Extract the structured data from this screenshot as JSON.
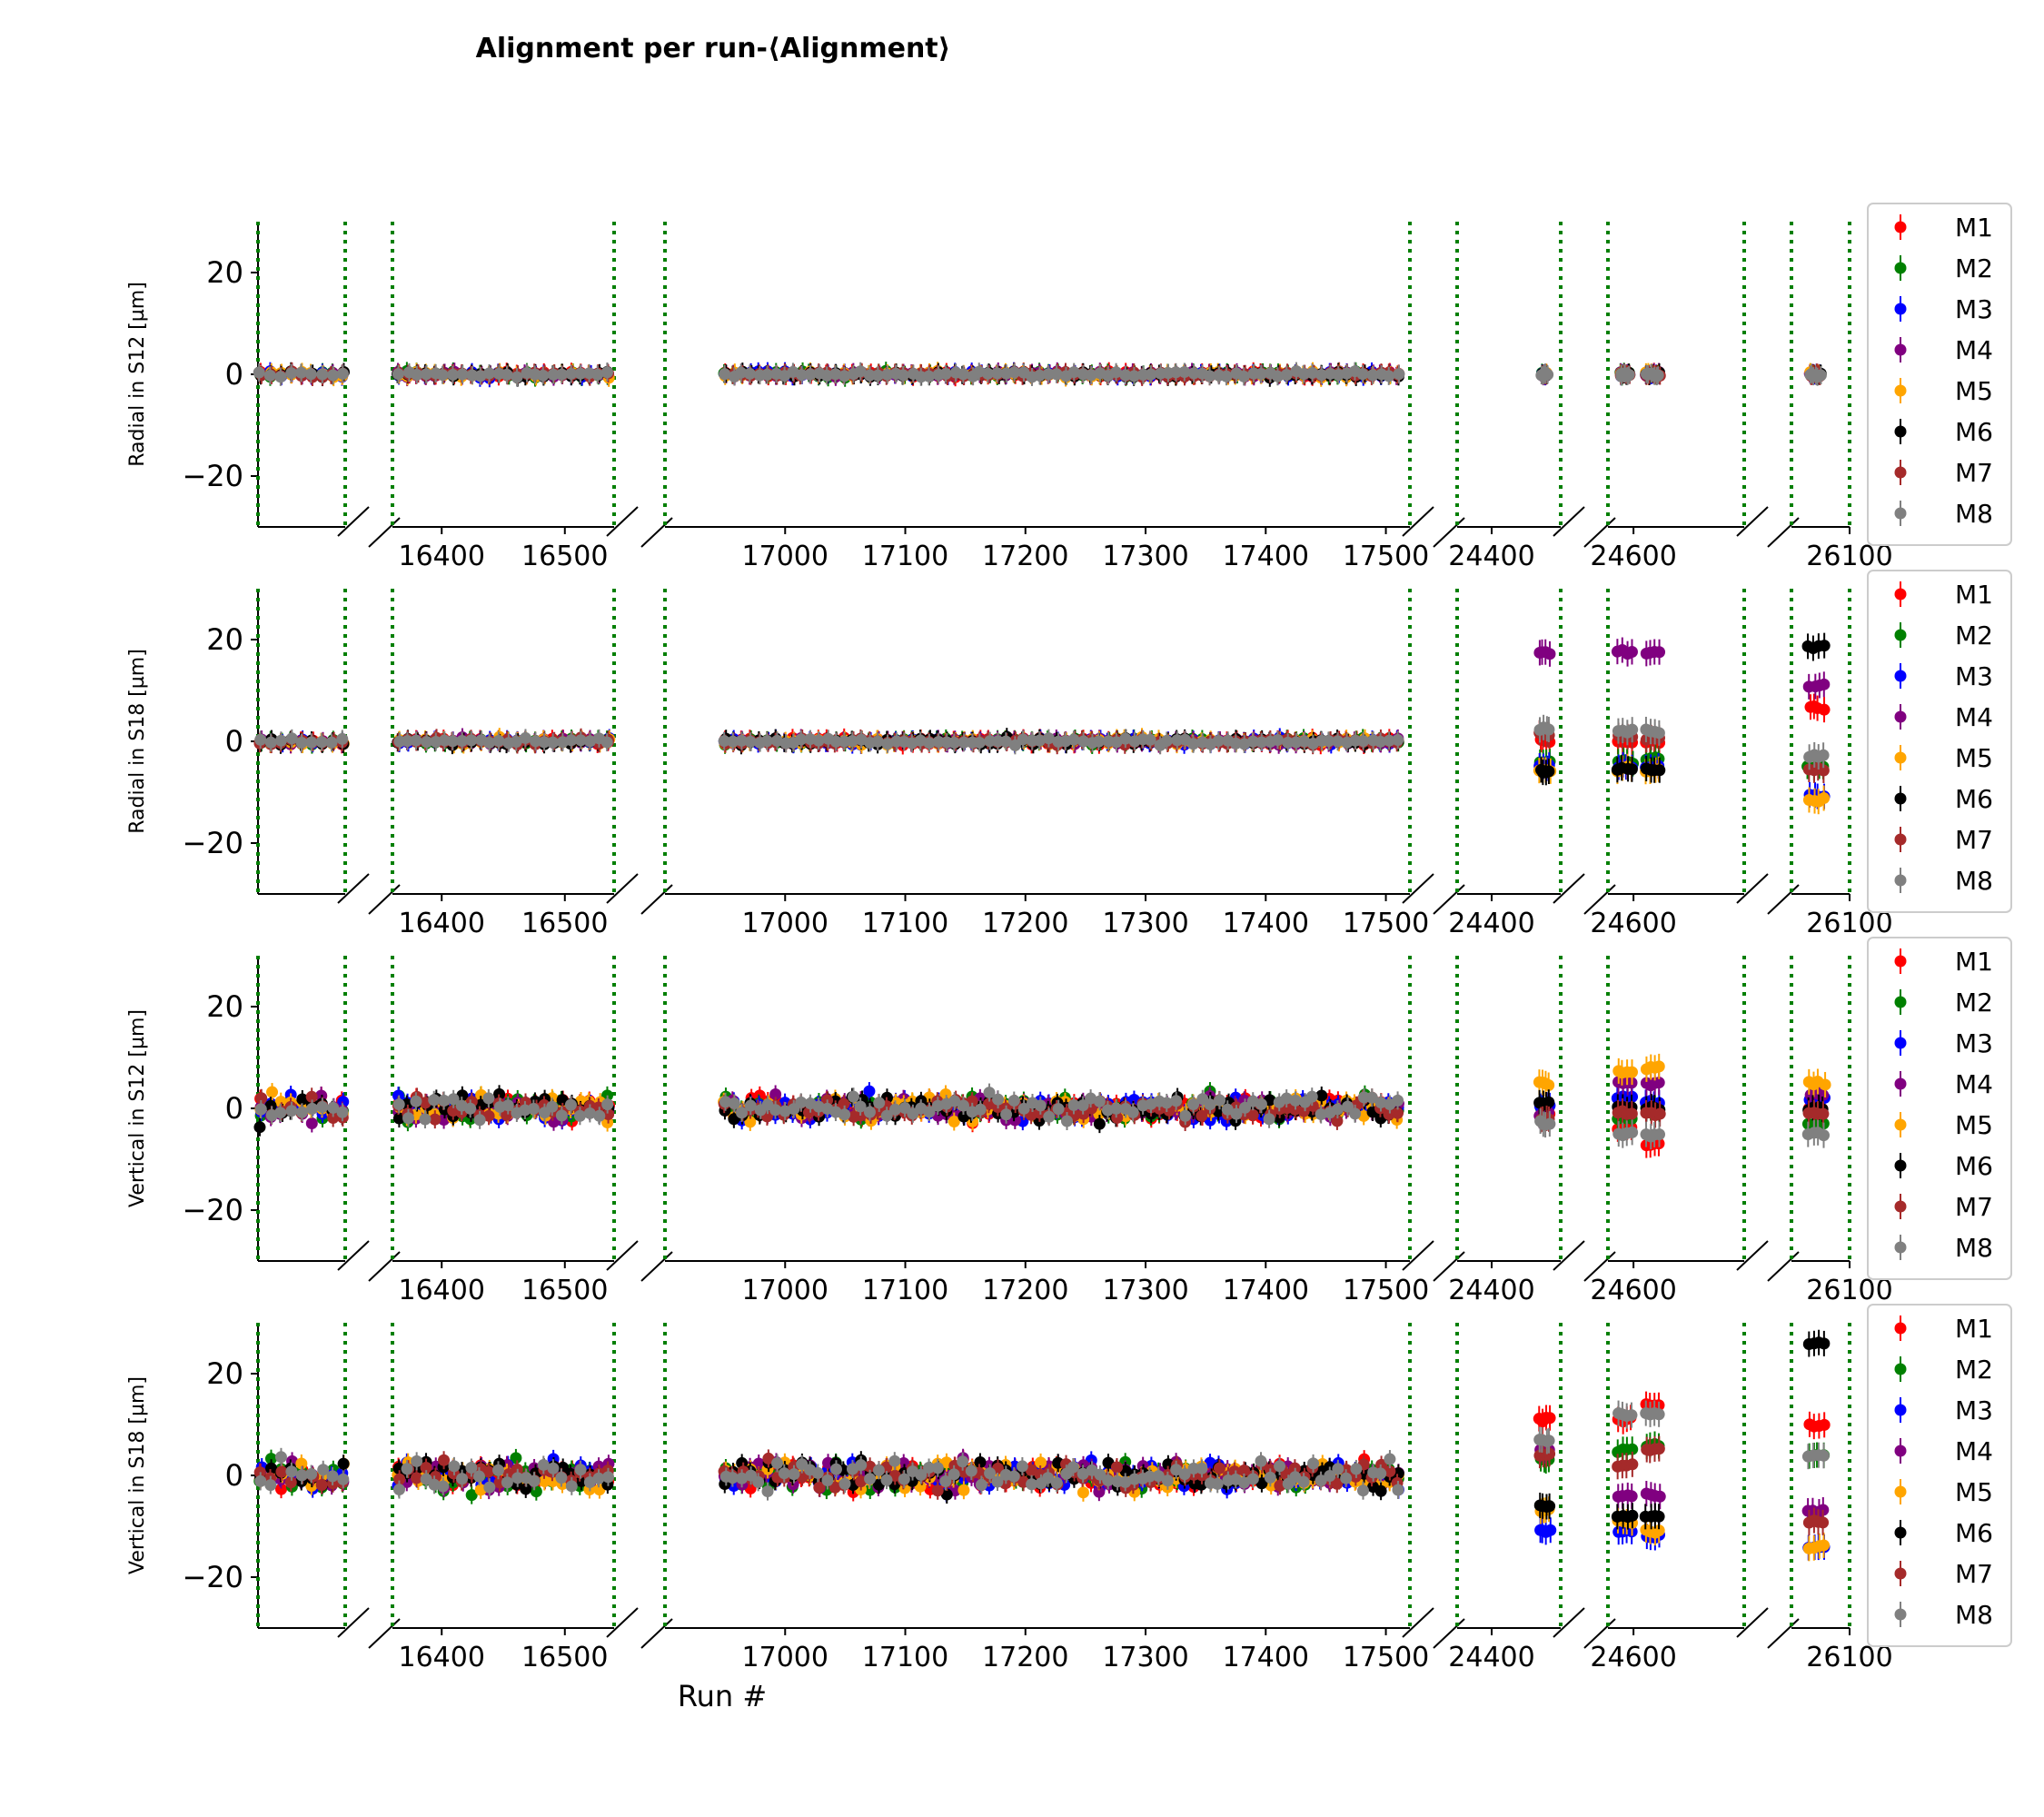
{
  "figure": {
    "title": "Alignment per run-⟨Alignment⟩",
    "xlabel": "Run #"
  },
  "series_colors": {
    "M1": "#ff0000",
    "M2": "#008000",
    "M3": "#0000ff",
    "M4": "#800080",
    "M5": "#ffa500",
    "M6": "#000000",
    "M7": "#a52a2a",
    "M8": "#808080"
  },
  "vline_color": "#007f00",
  "chart_data": {
    "type": "scatter",
    "ylim": [
      -30,
      30
    ],
    "yticks": [
      -20,
      0,
      20
    ],
    "legend": {
      "placement": "right",
      "entries": [
        "M1",
        "M2",
        "M3",
        "M4",
        "M5",
        "M6",
        "M7",
        "M8"
      ]
    },
    "segments": [
      {
        "xlim": [
          16260,
          16330
        ],
        "ticks": [],
        "vlines": [
          16260,
          16330
        ]
      },
      {
        "xlim": [
          16360,
          16540
        ],
        "ticks": [
          16400,
          16500
        ],
        "vlines": [
          16360,
          16540
        ]
      },
      {
        "xlim": [
          16900,
          17520
        ],
        "ticks": [
          17000,
          17100,
          17200,
          17300,
          17400,
          17500
        ],
        "vlines": [
          16900,
          17520
        ]
      },
      {
        "xlim": [
          24370,
          24460
        ],
        "ticks": [
          24400
        ],
        "vlines": [
          24370,
          24460
        ]
      },
      {
        "xlim": [
          24570,
          24730
        ],
        "ticks": [
          24600
        ],
        "vlines": [
          24570,
          24730
        ]
      },
      {
        "xlim": [
          26060,
          26100
        ],
        "ticks": [
          26100
        ],
        "vlines": [
          26060,
          26100
        ]
      }
    ],
    "panels": [
      {
        "ylabel": "Radial in S12 [µm]",
        "clusters": [
          {
            "seg": 0,
            "x": [
              16262,
              16328
            ],
            "spread": 0.8
          },
          {
            "seg": 1,
            "x": [
              16365,
              16535
            ],
            "spread": 0.8
          },
          {
            "seg": 2,
            "x": [
              16950,
              17510
            ],
            "spread": 0.8
          },
          {
            "seg": 3,
            "x": [
              24444,
              24448
            ],
            "spread": 0.6
          },
          {
            "seg": 4,
            "x": [
              24585,
              24595
            ],
            "spread": 0.6
          },
          {
            "seg": 4,
            "x": [
              24615,
              24630
            ],
            "spread": 0.6
          },
          {
            "seg": 5,
            "x": [
              26073,
              26080
            ],
            "spread": 0.6
          }
        ]
      },
      {
        "ylabel": "Radial in S18 [µm]",
        "clusters": [
          {
            "seg": 0,
            "x": [
              16262,
              16328
            ],
            "spread": 1.0
          },
          {
            "seg": 1,
            "x": [
              16365,
              16535
            ],
            "spread": 1.0
          },
          {
            "seg": 2,
            "x": [
              16950,
              17510
            ],
            "spread": 1.0
          },
          {
            "seg": 3,
            "x": [
              24442,
              24450
            ],
            "levels": {
              "M1": 0,
              "M2": -4,
              "M3": -5,
              "M4": 17.5,
              "M5": -5.5,
              "M6": -5.8,
              "M7": 1.5,
              "M8": 2.5
            }
          },
          {
            "seg": 4,
            "x": [
              24582,
              24598
            ],
            "levels": {
              "M1": 0,
              "M2": -4,
              "M3": -5,
              "M4": 17.5,
              "M5": -5.5,
              "M6": -5.5,
              "M7": 1.0,
              "M8": 2.0
            }
          },
          {
            "seg": 4,
            "x": [
              24615,
              24630
            ],
            "levels": {
              "M1": 0,
              "M2": -3.5,
              "M3": -5,
              "M4": 17.5,
              "M5": -5.8,
              "M6": -5.5,
              "M7": 0.5,
              "M8": 2.0
            }
          },
          {
            "seg": 5,
            "x": [
              26072,
              26082
            ],
            "levels": {
              "M1": 6.5,
              "M2": -5,
              "M3": -10.5,
              "M4": 11,
              "M5": -11.5,
              "M6": 18.5,
              "M7": -5.5,
              "M8": -3
            }
          }
        ]
      },
      {
        "ylabel": "Vertical in S12 [µm]",
        "clusters": [
          {
            "seg": 0,
            "x": [
              16262,
              16328
            ],
            "spread": 4.0
          },
          {
            "seg": 1,
            "x": [
              16365,
              16535
            ],
            "spread": 4.0
          },
          {
            "seg": 2,
            "x": [
              16950,
              17510
            ],
            "spread": 3.5
          },
          {
            "seg": 3,
            "x": [
              24442,
              24450
            ],
            "levels": {
              "M1": -1,
              "M2": 0,
              "M3": 0.5,
              "M4": -1,
              "M5": 5,
              "M6": 1,
              "M7": -2,
              "M8": -3
            }
          },
          {
            "seg": 4,
            "x": [
              24582,
              24598
            ],
            "levels": {
              "M1": -4,
              "M2": -2,
              "M3": 2,
              "M4": 5,
              "M5": 7,
              "M6": 0,
              "M7": -1,
              "M8": -5
            }
          },
          {
            "seg": 4,
            "x": [
              24615,
              24630
            ],
            "levels": {
              "M1": -7,
              "M2": 0,
              "M3": 1,
              "M4": 5,
              "M5": 8,
              "M6": 0,
              "M7": -1,
              "M8": -5
            }
          },
          {
            "seg": 5,
            "x": [
              26072,
              26082
            ],
            "levels": {
              "M1": 0,
              "M2": -3,
              "M3": 2,
              "M4": 3,
              "M5": 5,
              "M6": 0,
              "M7": -1,
              "M8": -5
            }
          }
        ]
      },
      {
        "ylabel": "Vertical in S18 [µm]",
        "clusters": [
          {
            "seg": 0,
            "x": [
              16262,
              16328
            ],
            "spread": 4.5
          },
          {
            "seg": 1,
            "x": [
              16365,
              16535
            ],
            "spread": 4.5
          },
          {
            "seg": 2,
            "x": [
              16950,
              17510
            ],
            "spread": 4.0
          },
          {
            "seg": 3,
            "x": [
              24442,
              24450
            ],
            "levels": {
              "M1": 11,
              "M2": 3,
              "M3": -11,
              "M4": 5,
              "M5": -7,
              "M6": -6,
              "M7": 4,
              "M8": 7
            }
          },
          {
            "seg": 4,
            "x": [
              24582,
              24598
            ],
            "levels": {
              "M1": 11,
              "M2": 5,
              "M3": -11,
              "M4": -4,
              "M5": -9,
              "M6": -8,
              "M7": 2,
              "M8": 12
            }
          },
          {
            "seg": 4,
            "x": [
              24615,
              24630
            ],
            "levels": {
              "M1": 14,
              "M2": 6,
              "M3": -12,
              "M4": -4,
              "M5": -11,
              "M6": -8,
              "M7": 5,
              "M8": 12
            }
          },
          {
            "seg": 5,
            "x": [
              26072,
              26082
            ],
            "levels": {
              "M1": 10,
              "M2": 4,
              "M3": -14,
              "M4": -7,
              "M5": -14,
              "M6": 26,
              "M7": -9,
              "M8": 4
            }
          }
        ]
      }
    ]
  }
}
